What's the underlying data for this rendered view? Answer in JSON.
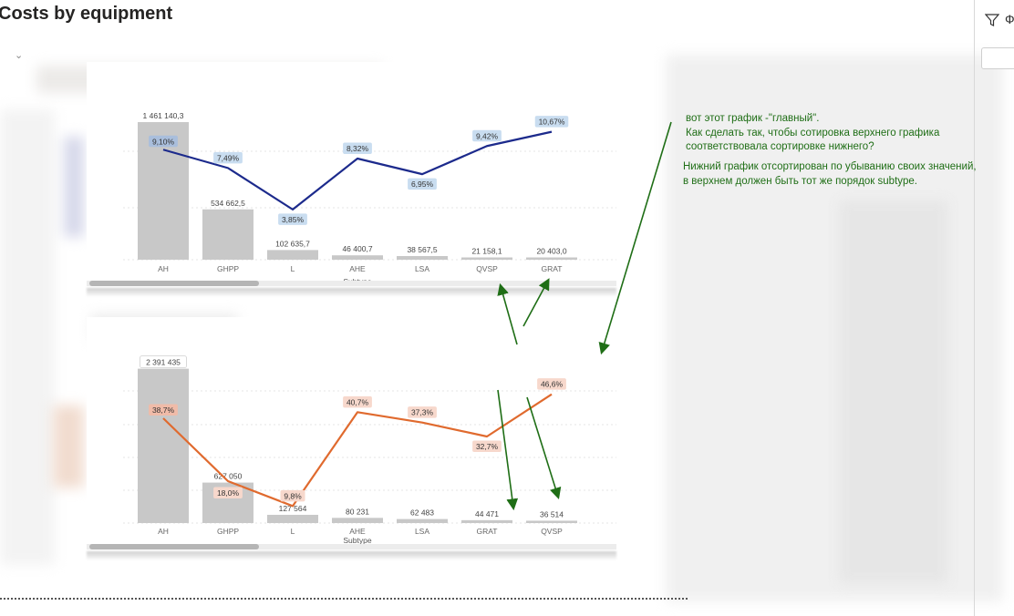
{
  "page": {
    "title": "Costs by equipment"
  },
  "panel": {
    "letter": "Ф"
  },
  "annotation": {
    "lines": [
      "вот этот график -\"главный\".",
      "Как сделать так, чтобы сотировка верхнего графика",
      "соответствовала сортировке нижнего?"
    ],
    "lines2": [
      "Нижний график отсортирован по убыванию своих значений,",
      "в верхнем должен быть тот же порядок subtype."
    ],
    "color": "#1f6e16"
  },
  "chart_data": [
    {
      "type": "bar",
      "xlabel": "Subtype",
      "categories": [
        "AH",
        "GHPP",
        "L",
        "AHE",
        "LSA",
        "QVSP",
        "GRAT"
      ],
      "bar_values": [
        1461140.3,
        534662.5,
        102635.7,
        46400.7,
        38567.5,
        21158.1,
        20403.0
      ],
      "bar_labels": [
        "1 461 140,3",
        "534 662,5",
        "102 635,7",
        "46 400,7",
        "38 567,5",
        "21 158,1",
        "20 403,0"
      ],
      "line_values": [
        9.1,
        7.49,
        3.85,
        8.32,
        6.95,
        9.42,
        10.67
      ],
      "line_labels": [
        "9,10%",
        "7,49%",
        "3,85%",
        "8,32%",
        "6,95%",
        "9,42%",
        "10,67%"
      ],
      "bar_color": "#c8c8c8",
      "line_color": "#1c2a8c",
      "label_bg": "#c9ddf0",
      "first_label_bg": "#a9bedc",
      "bar_ylim": [
        0,
        1500000
      ],
      "line_ylim": [
        0,
        12.0
      ],
      "grid": true
    },
    {
      "type": "bar",
      "xlabel": "Subtype",
      "categories": [
        "AH",
        "GHPP",
        "L",
        "AHE",
        "LSA",
        "GRAT",
        "QVSP"
      ],
      "bar_values": [
        2391435,
        627050,
        127564,
        80231,
        62483,
        44471,
        36514
      ],
      "bar_labels": [
        "2 391 435",
        "627 050",
        "127 564",
        "80 231",
        "62 483",
        "44 471",
        "36 514"
      ],
      "line_values": [
        38.7,
        18.0,
        9.8,
        40.7,
        37.3,
        32.7,
        46.6
      ],
      "line_labels": [
        "38,7%",
        "18,0%",
        "9,8%",
        "40,7%",
        "37,3%",
        "32,7%",
        "46,6%"
      ],
      "bar_color": "#c8c8c8",
      "line_color": "#e06a2e",
      "label_bg": "#f7d8cc",
      "first_label_bg": "#f0bba8",
      "bar_ylim": [
        0,
        2400000
      ],
      "line_ylim": [
        0,
        60
      ],
      "grid": true
    }
  ]
}
